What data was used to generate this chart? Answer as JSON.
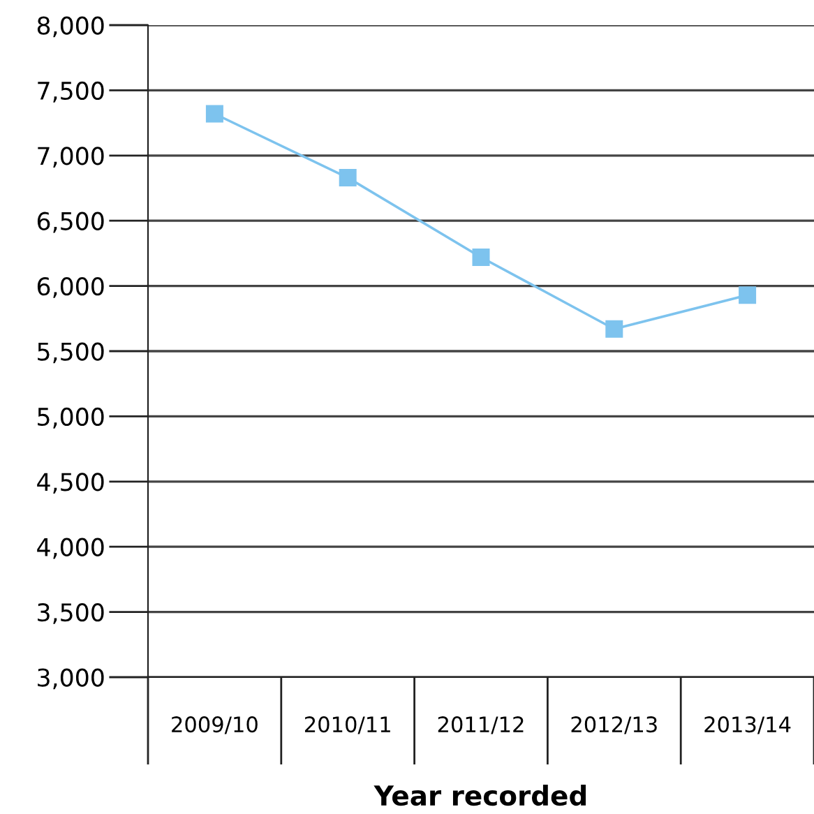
{
  "chart_data": {
    "type": "line",
    "xlabel": "Year recorded",
    "categories": [
      "2009/10",
      "2010/11",
      "2011/12",
      "2012/13",
      "2013/14"
    ],
    "series": [
      {
        "color": "#7dc3ee",
        "values": [
          7320,
          6830,
          6220,
          5670,
          5930
        ]
      }
    ],
    "ylim": [
      3000,
      8000
    ],
    "yticks": [
      {
        "value": 3000,
        "label": "3,000"
      },
      {
        "value": 3500,
        "label": "3,500"
      },
      {
        "value": 4000,
        "label": "4,000"
      },
      {
        "value": 4500,
        "label": "4,500"
      },
      {
        "value": 5000,
        "label": "5,000"
      },
      {
        "value": 5500,
        "label": "5,500"
      },
      {
        "value": 6000,
        "label": "6,000"
      },
      {
        "value": 6500,
        "label": "6,500"
      },
      {
        "value": 7000,
        "label": "7,000"
      },
      {
        "value": 7500,
        "label": "7,500"
      },
      {
        "value": 8000,
        "label": "8,000"
      }
    ],
    "grid": "y",
    "marker": "square",
    "line_style": "solid",
    "legend": false
  }
}
